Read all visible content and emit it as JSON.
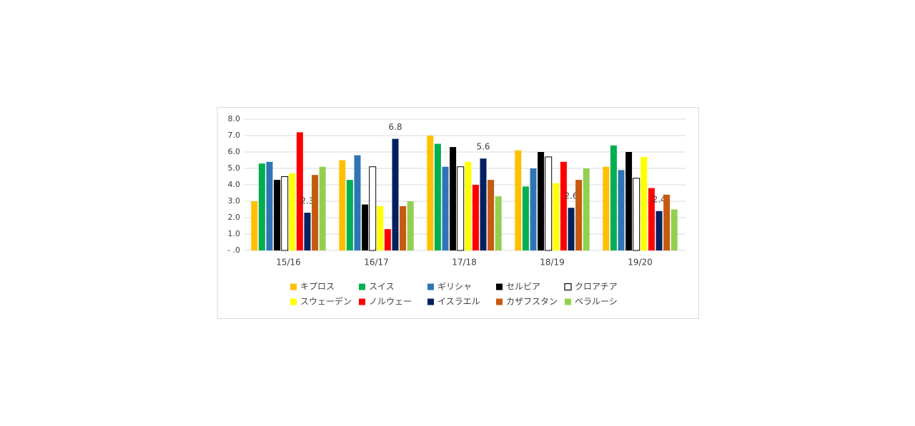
{
  "chart_data": {
    "type": "bar",
    "categories": [
      "15/16",
      "16/17",
      "17/18",
      "18/19",
      "19/20"
    ],
    "ylim": [
      0,
      8
    ],
    "yticks": [
      {
        "value": 0,
        "label": "- .0"
      },
      {
        "value": 1,
        "label": "1.0"
      },
      {
        "value": 2,
        "label": "2.0"
      },
      {
        "value": 3,
        "label": "3.0"
      },
      {
        "value": 4,
        "label": "4.0"
      },
      {
        "value": 5,
        "label": "5.0"
      },
      {
        "value": 6,
        "label": "6.0"
      },
      {
        "value": 7,
        "label": "7.0"
      },
      {
        "value": 8,
        "label": "8.0"
      }
    ],
    "grid": true,
    "legend": "bottom",
    "series": [
      {
        "name": "キプロス",
        "color": "#FFC000",
        "values": [
          3.0,
          5.5,
          7.0,
          6.1,
          5.1
        ]
      },
      {
        "name": "スイス",
        "color": "#00B050",
        "values": [
          5.3,
          4.3,
          6.5,
          3.9,
          6.4
        ]
      },
      {
        "name": "ギリシャ",
        "color": "#2E75B6",
        "values": [
          5.4,
          5.8,
          5.1,
          5.0,
          4.9
        ]
      },
      {
        "name": "セルビア",
        "color": "#000000",
        "values": [
          4.3,
          2.8,
          6.3,
          6.0,
          6.0
        ]
      },
      {
        "name": "クロアチア",
        "color": "#FFFFFF",
        "edgecolor": "#000000",
        "values": [
          4.5,
          5.1,
          5.1,
          5.7,
          4.4
        ]
      },
      {
        "name": "スウェーデン",
        "color": "#FFFF00",
        "values": [
          4.7,
          2.7,
          5.4,
          4.1,
          5.7
        ]
      },
      {
        "name": "ノルウェー",
        "color": "#FF0000",
        "values": [
          7.2,
          1.3,
          4.0,
          5.4,
          3.8
        ]
      },
      {
        "name": "イスラエル",
        "color": "#002060",
        "values": [
          2.3,
          6.8,
          5.6,
          2.6,
          2.4
        ],
        "data_labels": true
      },
      {
        "name": "カザフスタン",
        "color": "#C55A11",
        "values": [
          4.6,
          2.7,
          4.3,
          4.3,
          3.4
        ]
      },
      {
        "name": "ベラルーシ",
        "color": "#92D050",
        "values": [
          5.1,
          3.0,
          3.3,
          5.0,
          2.5
        ]
      }
    ]
  }
}
